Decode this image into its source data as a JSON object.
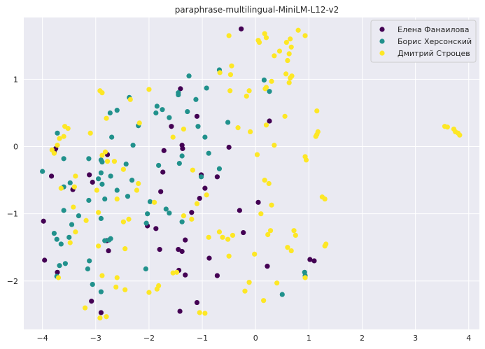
{
  "chart_data": {
    "type": "scatter",
    "title": "paraphrase-multilingual-MiniLM-L12-v2",
    "xlabel": "",
    "ylabel": "",
    "xlim": [
      -4.35,
      4.2
    ],
    "ylim": [
      -2.72,
      1.92
    ],
    "xticks": [
      -4,
      -3,
      -2,
      -1,
      0,
      1,
      2,
      3,
      4
    ],
    "yticks": [
      -2,
      -1,
      0,
      1
    ],
    "grid": true,
    "legend_position": "top-right",
    "series": [
      {
        "name": "Елена Фанаилова",
        "color": "#440154",
        "points": [
          [
            -0.27,
            1.75
          ],
          [
            -0.3,
            -0.95
          ],
          [
            -0.23,
            -1.28
          ],
          [
            0.05,
            -0.83
          ],
          [
            0.22,
            -1.78
          ],
          [
            0.26,
            0.38
          ],
          [
            -1.1,
            0.45
          ],
          [
            -1.41,
            0.86
          ],
          [
            -1.58,
            0.3
          ],
          [
            -1.38,
            0.02
          ],
          [
            -1.37,
            -0.03
          ],
          [
            -1.72,
            -0.06
          ],
          [
            -1.74,
            -0.38
          ],
          [
            -1.78,
            -0.67
          ],
          [
            -1.87,
            -1.22
          ],
          [
            -1.8,
            -1.53
          ],
          [
            -1.45,
            -1.53
          ],
          [
            -1.38,
            -1.56
          ],
          [
            -1.44,
            -1.84
          ],
          [
            -1.32,
            -1.91
          ],
          [
            -1.42,
            -2.45
          ],
          [
            -1.1,
            -2.32
          ],
          [
            -1.2,
            -0.98
          ],
          [
            -1.05,
            -0.77
          ],
          [
            -0.95,
            -0.62
          ],
          [
            -0.87,
            -1.66
          ],
          [
            -0.72,
            -1.92
          ],
          [
            -0.72,
            -0.45
          ],
          [
            -0.5,
            -0.01
          ],
          [
            -1.02,
            -0.42
          ],
          [
            -1.32,
            -1.39
          ],
          [
            -2.03,
            -1.18
          ],
          [
            -2.78,
            -0.12
          ],
          [
            -2.76,
            -1.55
          ],
          [
            -2.9,
            -2.47
          ],
          [
            -3.08,
            -2.3
          ],
          [
            -3.06,
            -0.53
          ],
          [
            -3.12,
            -0.42
          ],
          [
            -3.43,
            -0.64
          ],
          [
            -3.72,
            -1.87
          ],
          [
            -3.96,
            -1.69
          ],
          [
            -3.98,
            -1.11
          ],
          [
            -3.83,
            -0.44
          ],
          [
            -3.78,
            -0.08
          ],
          [
            -3.75,
            -0.03
          ],
          [
            -2.79,
            -1.4
          ],
          [
            1.02,
            -1.68
          ],
          [
            1.1,
            -1.7
          ]
        ]
      },
      {
        "name": "Борис Херсонский",
        "color": "#21918c",
        "points": [
          [
            -1.25,
            1.05
          ],
          [
            -0.92,
            0.87
          ],
          [
            -0.68,
            1.14
          ],
          [
            0.16,
            0.99
          ],
          [
            0.26,
            0.82
          ],
          [
            -1.45,
            0.8
          ],
          [
            -1.45,
            0.77
          ],
          [
            -1.12,
            0.7
          ],
          [
            -1.85,
            0.6
          ],
          [
            -1.75,
            0.55
          ],
          [
            -1.87,
            0.5
          ],
          [
            -1.62,
            0.43
          ],
          [
            -1.28,
            0.52
          ],
          [
            -1.08,
            0.3
          ],
          [
            -0.95,
            0.14
          ],
          [
            -0.52,
            0.36
          ],
          [
            -0.68,
            -0.33
          ],
          [
            -2.37,
            0.73
          ],
          [
            -2.6,
            0.54
          ],
          [
            -2.73,
            0.5
          ],
          [
            -2.2,
            0.31
          ],
          [
            -2.3,
            0.02
          ],
          [
            -3.72,
            0.2
          ],
          [
            -3.6,
            -0.18
          ],
          [
            -4.0,
            -0.37
          ],
          [
            -2.7,
            0.14
          ],
          [
            -3.13,
            -0.18
          ],
          [
            -2.9,
            -0.2
          ],
          [
            -3.13,
            -0.8
          ],
          [
            -2.95,
            -0.48
          ],
          [
            -2.88,
            -0.23
          ],
          [
            -2.9,
            -0.39
          ],
          [
            -2.72,
            -0.44
          ],
          [
            -2.6,
            -0.65
          ],
          [
            -2.43,
            -0.26
          ],
          [
            -2.32,
            -0.5
          ],
          [
            -1.82,
            -0.28
          ],
          [
            -1.43,
            -0.25
          ],
          [
            -1.38,
            -0.14
          ],
          [
            -1.02,
            -0.45
          ],
          [
            -0.88,
            -0.1
          ],
          [
            -1.68,
            -0.93
          ],
          [
            -1.62,
            -0.99
          ],
          [
            -1.38,
            -1.12
          ],
          [
            -1.98,
            -0.82
          ],
          [
            -2.03,
            -1.0
          ],
          [
            -2.05,
            -1.14
          ],
          [
            -2.4,
            -0.74
          ],
          [
            -2.88,
            -0.56
          ],
          [
            -2.83,
            -0.78
          ],
          [
            -2.9,
            -1.07
          ],
          [
            -3.32,
            -1.03
          ],
          [
            -3.45,
            -1.16
          ],
          [
            -3.5,
            -1.35
          ],
          [
            -3.6,
            -0.95
          ],
          [
            -3.48,
            -0.54
          ],
          [
            -3.6,
            -0.6
          ],
          [
            -3.78,
            -1.29
          ],
          [
            -3.73,
            -1.38
          ],
          [
            -3.65,
            -1.45
          ],
          [
            -3.57,
            -1.74
          ],
          [
            -3.68,
            -1.77
          ],
          [
            -3.73,
            -1.93
          ],
          [
            -3.12,
            -1.7
          ],
          [
            -3.15,
            -1.82
          ],
          [
            -3.06,
            -2.05
          ],
          [
            -2.9,
            -2.16
          ],
          [
            -2.83,
            -1.4
          ],
          [
            -2.72,
            -1.37
          ],
          [
            -2.75,
            -1.39
          ],
          [
            -2.06,
            -1.82
          ],
          [
            0.5,
            -2.2
          ],
          [
            0.92,
            -1.87
          ],
          [
            0.93,
            -1.92
          ]
        ]
      },
      {
        "name": "Дмитрий Строцев",
        "color": "#fde725",
        "points": [
          [
            -0.5,
            1.65
          ],
          [
            0.05,
            1.58
          ],
          [
            0.07,
            1.55
          ],
          [
            0.17,
            1.68
          ],
          [
            0.2,
            1.62
          ],
          [
            0.35,
            1.35
          ],
          [
            0.45,
            1.42
          ],
          [
            0.58,
            1.55
          ],
          [
            0.65,
            1.6
          ],
          [
            0.67,
            1.48
          ],
          [
            0.63,
            1.38
          ],
          [
            0.6,
            1.28
          ],
          [
            0.57,
            1.08
          ],
          [
            0.65,
            1.02
          ],
          [
            0.68,
            1.05
          ],
          [
            0.63,
            0.95
          ],
          [
            0.8,
            1.73
          ],
          [
            0.93,
            1.65
          ],
          [
            -0.45,
            1.2
          ],
          [
            -0.47,
            1.07
          ],
          [
            -0.67,
            1.1
          ],
          [
            -0.48,
            0.83
          ],
          [
            -0.12,
            0.83
          ],
          [
            -0.17,
            0.75
          ],
          [
            0.2,
            0.88
          ],
          [
            0.18,
            0.86
          ],
          [
            0.3,
            0.97
          ],
          [
            -0.33,
            0.28
          ],
          [
            -0.1,
            0.22
          ],
          [
            0.2,
            0.32
          ],
          [
            0.35,
            0.02
          ],
          [
            0.03,
            -0.12
          ],
          [
            0.17,
            -0.5
          ],
          [
            0.25,
            -0.55
          ],
          [
            0.3,
            -0.87
          ],
          [
            0.1,
            -1.0
          ],
          [
            -0.68,
            -1.27
          ],
          [
            -0.62,
            -1.35
          ],
          [
            -0.43,
            -1.32
          ],
          [
            -0.5,
            -1.63
          ],
          [
            -0.2,
            -2.15
          ],
          [
            -0.12,
            -2.02
          ],
          [
            -0.02,
            -1.6
          ],
          [
            0.23,
            -1.31
          ],
          [
            0.28,
            -1.25
          ],
          [
            0.4,
            -2.03
          ],
          [
            0.15,
            -2.29
          ],
          [
            0.72,
            -1.25
          ],
          [
            0.75,
            -1.32
          ],
          [
            0.6,
            -1.5
          ],
          [
            0.67,
            -1.55
          ],
          [
            0.93,
            -1.95
          ],
          [
            0.93,
            -0.15
          ],
          [
            0.95,
            -0.2
          ],
          [
            1.15,
            0.53
          ],
          [
            1.15,
            0.18
          ],
          [
            1.17,
            0.22
          ],
          [
            1.13,
            0.15
          ],
          [
            1.25,
            -0.75
          ],
          [
            1.3,
            -0.78
          ],
          [
            1.3,
            -1.48
          ],
          [
            1.32,
            -1.45
          ],
          [
            0.55,
            0.45
          ],
          [
            3.55,
            0.3
          ],
          [
            3.6,
            0.29
          ],
          [
            3.72,
            0.26
          ],
          [
            3.75,
            0.22
          ],
          [
            3.8,
            0.2
          ],
          [
            3.83,
            0.17
          ],
          [
            -0.88,
            -1.35
          ],
          [
            -0.92,
            -0.72
          ],
          [
            -1.1,
            -0.85
          ],
          [
            -1.35,
            -1.03
          ],
          [
            -1.55,
            -1.88
          ],
          [
            -1.48,
            -1.87
          ],
          [
            -1.05,
            -2.47
          ],
          [
            -0.95,
            -2.48
          ],
          [
            -1.82,
            -2.07
          ],
          [
            -1.85,
            -2.12
          ],
          [
            -2.0,
            -2.17
          ],
          [
            -2.2,
            -0.55
          ],
          [
            -2.38,
            -1.08
          ],
          [
            -2.48,
            -1.12
          ],
          [
            -2.45,
            -1.52
          ],
          [
            -2.6,
            -1.95
          ],
          [
            -2.62,
            -2.09
          ],
          [
            -2.45,
            -2.13
          ],
          [
            -2.88,
            -1.92
          ],
          [
            -2.92,
            -2.55
          ],
          [
            -2.8,
            -2.53
          ],
          [
            -3.2,
            -2.4
          ],
          [
            -2.95,
            -1.48
          ],
          [
            -2.95,
            -0.98
          ],
          [
            -2.88,
            -0.13
          ],
          [
            -2.82,
            -0.08
          ],
          [
            -2.98,
            -0.65
          ],
          [
            -2.6,
            -0.78
          ],
          [
            -2.92,
            0.83
          ],
          [
            -2.88,
            0.8
          ],
          [
            -2.8,
            0.42
          ],
          [
            -2.78,
            -0.22
          ],
          [
            -3.38,
            -0.44
          ],
          [
            -3.4,
            -0.6
          ],
          [
            -3.65,
            -0.62
          ],
          [
            -3.58,
            0.3
          ],
          [
            -3.52,
            0.27
          ],
          [
            -3.6,
            0.15
          ],
          [
            -3.68,
            0.12
          ],
          [
            -3.72,
            0.02
          ],
          [
            -3.82,
            -0.05
          ],
          [
            -3.78,
            -0.1
          ],
          [
            -3.1,
            0.2
          ],
          [
            -3.42,
            -0.9
          ],
          [
            -3.18,
            -1.1
          ],
          [
            -3.48,
            -1.43
          ],
          [
            -3.7,
            -1.95
          ],
          [
            -3.38,
            -1.27
          ],
          [
            -2.48,
            -0.34
          ],
          [
            -2.35,
            0.7
          ],
          [
            -2.18,
            0.35
          ],
          [
            -2.0,
            0.85
          ],
          [
            -1.35,
            0.26
          ],
          [
            -1.55,
            0.14
          ],
          [
            -2.23,
            -0.65
          ],
          [
            -1.9,
            -0.83
          ],
          [
            -1.18,
            -0.35
          ],
          [
            -2.65,
            -0.22
          ],
          [
            -1.2,
            -1.08
          ],
          [
            -0.52,
            -1.38
          ]
        ]
      }
    ]
  }
}
